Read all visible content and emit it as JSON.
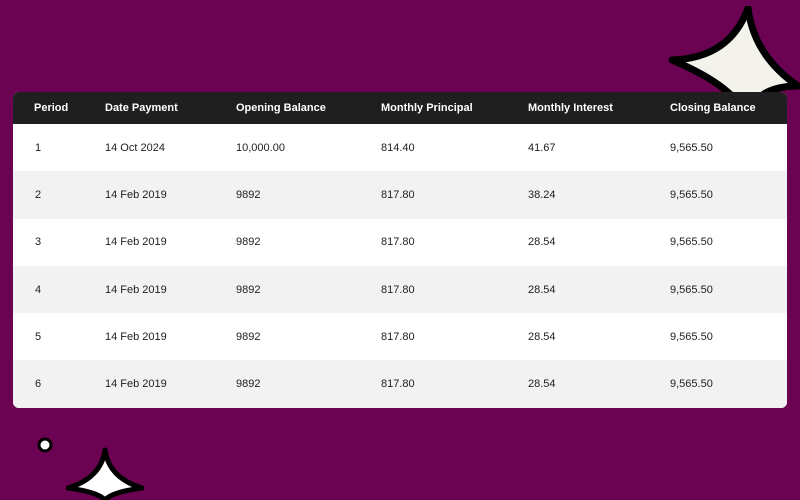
{
  "table": {
    "headers": [
      "Period",
      "Date Payment",
      "Opening Balance",
      "Monthly Principal",
      "Monthly Interest",
      "Closing Balance"
    ],
    "rows": [
      [
        "1",
        "14 Oct 2024",
        "10,000.00",
        "814.40",
        "41.67",
        "9,565.50"
      ],
      [
        "2",
        "14 Feb 2019",
        "9892",
        "817.80",
        "38.24",
        "9,565.50"
      ],
      [
        "3",
        "14 Feb 2019",
        "9892",
        "817.80",
        "28.54",
        "9,565.50"
      ],
      [
        "4",
        "14 Feb 2019",
        "9892",
        "817.80",
        "28.54",
        "9,565.50"
      ],
      [
        "5",
        "14 Feb 2019",
        "9892",
        "817.80",
        "28.54",
        "9,565.50"
      ],
      [
        "6",
        "14 Feb 2019",
        "9892",
        "817.80",
        "28.54",
        "9,565.50"
      ]
    ]
  },
  "theme": {
    "background": "#6c0352",
    "header_background": "#1f1f1f",
    "header_text": "#ffffff",
    "row_alt_background": "#f2f2f2",
    "row_background": "#ffffff",
    "sparkle_fill": "#f3f3ec",
    "sparkle_outline": "#000000"
  },
  "decorations": {
    "large_sparkle": "sparkle-icon",
    "small_sparkle": "sparkle-icon",
    "dot": "circle-dot-icon"
  }
}
